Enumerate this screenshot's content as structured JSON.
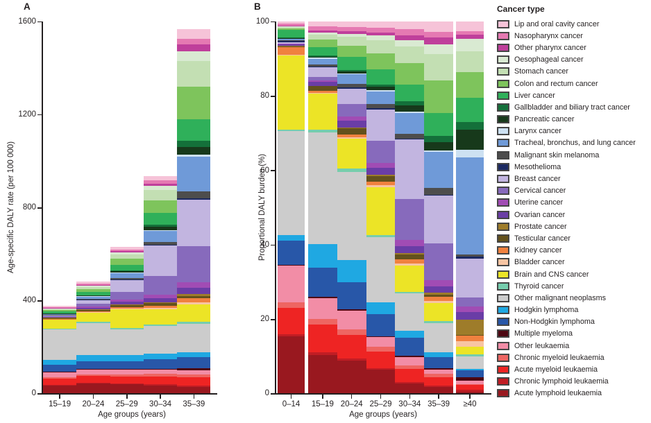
{
  "figure": {
    "panel_a_letter": "A",
    "panel_b_letter": "B"
  },
  "legend": {
    "title": "Cancer type"
  },
  "cancer_types": [
    {
      "name": "Lip and oral cavity cancer",
      "color": "#f6c3d8"
    },
    {
      "name": "Nasopharynx cancer",
      "color": "#e579b2"
    },
    {
      "name": "Other pharynx cancer",
      "color": "#bf3f9b"
    },
    {
      "name": "Oesophageal cancer",
      "color": "#d9ead2"
    },
    {
      "name": "Stomach cancer",
      "color": "#c3dfb3"
    },
    {
      "name": "Colon and rectum cancer",
      "color": "#7ec45c"
    },
    {
      "name": "Liver cancer",
      "color": "#2fb05a"
    },
    {
      "name": "Gallbladder and biliary tract cancer",
      "color": "#14703a"
    },
    {
      "name": "Pancreatic cancer",
      "color": "#17391b"
    },
    {
      "name": "Larynx cancer",
      "color": "#cde1f2"
    },
    {
      "name": "Tracheal, bronchus, and lung cancer",
      "color": "#6f9ad8"
    },
    {
      "name": "Malignant skin melanoma",
      "color": "#4d4d4d"
    },
    {
      "name": "Mesothelioma",
      "color": "#1c2a62"
    },
    {
      "name": "Breast cancer",
      "color": "#c2b5e0"
    },
    {
      "name": "Cervical cancer",
      "color": "#876abc"
    },
    {
      "name": "Uterine cancer",
      "color": "#a14cb4"
    },
    {
      "name": "Ovarian cancer",
      "color": "#6a3da6"
    },
    {
      "name": "Prostate cancer",
      "color": "#9e7c2a"
    },
    {
      "name": "Testicular cancer",
      "color": "#63511c"
    },
    {
      "name": "Kidney cancer",
      "color": "#f0813f"
    },
    {
      "name": "Bladder cancer",
      "color": "#f8c5a3"
    },
    {
      "name": "Brain and CNS cancer",
      "color": "#ece426"
    },
    {
      "name": "Thyroid cancer",
      "color": "#75cdad"
    },
    {
      "name": "Other malignant neoplasms",
      "color": "#cccccc"
    },
    {
      "name": "Hodgkin lymphoma",
      "color": "#1fa8e2"
    },
    {
      "name": "Non-Hodgkin lymphoma",
      "color": "#2857a8"
    },
    {
      "name": "Multiple myeloma",
      "color": "#4d0712"
    },
    {
      "name": "Other leukaemia",
      "color": "#f28da6"
    },
    {
      "name": "Chronic myeloid leukaemia",
      "color": "#ee6562"
    },
    {
      "name": "Acute myeloid leukaemia",
      "color": "#ee2423"
    },
    {
      "name": "Chronic lymphoid leukaemia",
      "color": "#c11d24"
    },
    {
      "name": "Acute lymphoid leukaemia",
      "color": "#99181f"
    }
  ],
  "chart_data": [
    {
      "type": "bar",
      "stacked": true,
      "stack_order": "last series at bottom, first series at top",
      "panel": "A",
      "xlabel": "Age groups (years)",
      "ylabel": "Age-specific DALY rate (per 100 000)",
      "ylim": [
        0,
        1600
      ],
      "yticks": [
        0,
        400,
        800,
        1200,
        1600
      ],
      "grid": false,
      "normalize": false,
      "categories": [
        "15–19",
        "20–24",
        "25–29",
        "30–34",
        "35–39"
      ],
      "series": [
        {
          "name": "Lip and oral cavity cancer",
          "values": [
            5,
            7,
            10,
            18,
            42
          ]
        },
        {
          "name": "Nasopharynx cancer",
          "values": [
            4,
            6,
            8,
            14,
            24
          ]
        },
        {
          "name": "Other pharynx cancer",
          "values": [
            2,
            3,
            5,
            10,
            30
          ]
        },
        {
          "name": "Oesophageal cancer",
          "values": [
            2,
            4,
            8,
            16,
            40
          ]
        },
        {
          "name": "Stomach cancer",
          "values": [
            4,
            10,
            20,
            45,
            110
          ]
        },
        {
          "name": "Colon and rectum cancer",
          "values": [
            6,
            12,
            25,
            55,
            140
          ]
        },
        {
          "name": "Liver cancer",
          "values": [
            8,
            14,
            25,
            50,
            95
          ]
        },
        {
          "name": "Gallbladder and biliary tract cancer",
          "values": [
            1,
            2,
            4,
            10,
            25
          ]
        },
        {
          "name": "Pancreatic cancer",
          "values": [
            1,
            3,
            6,
            14,
            35
          ]
        },
        {
          "name": "Larynx cancer",
          "values": [
            1,
            1,
            2,
            4,
            8
          ]
        },
        {
          "name": "Tracheal, bronchus, and lung cancer",
          "values": [
            4,
            10,
            20,
            45,
            150
          ]
        },
        {
          "name": "Malignant skin melanoma",
          "values": [
            2,
            4,
            7,
            14,
            28
          ]
        },
        {
          "name": "Mesothelioma",
          "values": [
            0.5,
            1,
            2,
            3,
            5
          ]
        },
        {
          "name": "Breast cancer",
          "values": [
            2,
            15,
            50,
            130,
            200
          ]
        },
        {
          "name": "Cervical cancer",
          "values": [
            3,
            14,
            35,
            80,
            155
          ]
        },
        {
          "name": "Uterine cancer",
          "values": [
            1,
            4,
            8,
            16,
            25
          ]
        },
        {
          "name": "Ovarian cancer",
          "values": [
            4,
            8,
            12,
            18,
            28
          ]
        },
        {
          "name": "Prostate cancer",
          "values": [
            0.5,
            1,
            2,
            4,
            8
          ]
        },
        {
          "name": "Testicular cancer",
          "values": [
            4,
            7,
            9,
            10,
            9
          ]
        },
        {
          "name": "Kidney cancer",
          "values": [
            2,
            4,
            6,
            10,
            18
          ]
        },
        {
          "name": "Bladder cancer",
          "values": [
            1,
            2,
            3,
            5,
            8
          ]
        },
        {
          "name": "Brain and CNS cancer",
          "values": [
            38,
            38,
            80,
            65,
            75
          ]
        },
        {
          "name": "Thyroid cancer",
          "values": [
            3,
            5,
            6,
            8,
            10
          ]
        },
        {
          "name": "Other malignant neoplasms",
          "values": [
            132,
            140,
            112,
            120,
            122
          ]
        },
        {
          "name": "Hodgkin lymphoma",
          "values": [
            22,
            26,
            25,
            23,
            21
          ]
        },
        {
          "name": "Non-Hodgkin lymphoma",
          "values": [
            30,
            32,
            35,
            40,
            48
          ]
        },
        {
          "name": "Multiple myeloma",
          "values": [
            1,
            1,
            2,
            4,
            7
          ]
        },
        {
          "name": "Other leukaemia",
          "values": [
            21,
            22,
            20,
            19,
            18
          ]
        },
        {
          "name": "Chronic myeloid leukaemia",
          "values": [
            6,
            8,
            9,
            11,
            13
          ]
        },
        {
          "name": "Acute myeloid leukaemia",
          "values": [
            28,
            30,
            32,
            34,
            36
          ]
        },
        {
          "name": "Chronic lymphoid leukaemia",
          "values": [
            2,
            3,
            3,
            4,
            5
          ]
        },
        {
          "name": "Acute lymphoid leukaemia",
          "values": [
            36,
            43,
            40,
            36,
            30
          ]
        }
      ]
    },
    {
      "type": "bar",
      "stacked": true,
      "stack_order": "last series at bottom, first series at top",
      "panel": "B",
      "xlabel": "Age groups (years)",
      "ylabel": "Proportional DALY burden (%)",
      "ylim": [
        0,
        100
      ],
      "yticks": [
        0,
        20,
        40,
        60,
        80,
        100
      ],
      "grid": false,
      "normalize": true,
      "categories": [
        "0–14",
        "15–19",
        "20–24",
        "25–29",
        "30–34",
        "35–39",
        "≥40"
      ],
      "series": [
        {
          "name": "Lip and oral cavity cancer",
          "values": [
            0.4,
            1.3,
            1.4,
            1.6,
            2.0,
            2.7,
            2.5
          ]
        },
        {
          "name": "Nasopharynx cancer",
          "values": [
            0.7,
            1.1,
            1.2,
            1.3,
            1.6,
            1.5,
            1.0
          ]
        },
        {
          "name": "Other pharynx cancer",
          "values": [
            0.2,
            0.5,
            0.6,
            0.8,
            1.3,
            1.9,
            1.0
          ]
        },
        {
          "name": "Oesophageal cancer",
          "values": [
            0.1,
            0.5,
            0.8,
            1.3,
            1.7,
            2.6,
            3.5
          ]
        },
        {
          "name": "Stomach cancer",
          "values": [
            0.3,
            1.4,
            2.5,
            3.5,
            4.5,
            7.0,
            5.5
          ]
        },
        {
          "name": "Colon and rectum cancer",
          "values": [
            0.5,
            2.0,
            3.0,
            4.3,
            5.75,
            8.9,
            7.0
          ]
        },
        {
          "name": "Liver cancer",
          "values": [
            2.0,
            2.3,
            3.4,
            4.0,
            4.5,
            6.1,
            6.5
          ]
        },
        {
          "name": "Gallbladder and biliary tract cancer",
          "values": [
            0.2,
            0.3,
            0.4,
            0.6,
            1.2,
            1.6,
            2.0
          ]
        },
        {
          "name": "Pancreatic cancer",
          "values": [
            0.1,
            0.3,
            0.6,
            1.0,
            1.6,
            2.2,
            5.5
          ]
        },
        {
          "name": "Larynx cancer",
          "values": [
            0.1,
            0.3,
            0.2,
            0.3,
            0.4,
            0.5,
            2.0
          ]
        },
        {
          "name": "Tracheal, bronchus, and lung cancer",
          "values": [
            0.4,
            1.5,
            2.6,
            3.5,
            5.5,
            9.6,
            26.0
          ]
        },
        {
          "name": "Malignant skin melanoma",
          "values": [
            0.2,
            0.5,
            1.0,
            1.1,
            1.3,
            1.8,
            0.6
          ]
        },
        {
          "name": "Mesothelioma",
          "values": [
            0.4,
            0.2,
            0.2,
            0.3,
            0.3,
            0.3,
            0.5
          ]
        },
        {
          "name": "Breast cancer",
          "values": [
            0.2,
            2.6,
            4.1,
            8.4,
            16.0,
            12.8,
            10.5
          ]
        },
        {
          "name": "Cervical cancer",
          "values": [
            0.1,
            1.0,
            3.5,
            6.0,
            11.0,
            9.9,
            2.5
          ]
        },
        {
          "name": "Uterine cancer",
          "values": [
            0.1,
            0.3,
            1.0,
            1.3,
            1.7,
            1.6,
            1.5
          ]
        },
        {
          "name": "Ovarian cancer",
          "values": [
            0.5,
            1.1,
            1.9,
            1.9,
            1.8,
            1.8,
            2.0
          ]
        },
        {
          "name": "Prostate cancer",
          "values": [
            0.1,
            0.1,
            0.2,
            0.3,
            0.4,
            0.5,
            4.0
          ]
        },
        {
          "name": "Testicular cancer",
          "values": [
            0.3,
            1.3,
            1.6,
            1.4,
            1.3,
            0.6,
            0.2
          ]
        },
        {
          "name": "Kidney cancer",
          "values": [
            2.0,
            0.5,
            0.8,
            1.0,
            1.2,
            1.1,
            1.5
          ]
        },
        {
          "name": "Bladder cancer",
          "values": [
            0.1,
            0.3,
            0.4,
            0.5,
            0.5,
            0.5,
            1.5
          ]
        },
        {
          "name": "Brain and CNS cancer",
          "values": [
            20.0,
            9.6,
            8.0,
            13.0,
            7.0,
            4.8,
            2.2
          ]
        },
        {
          "name": "Thyroid cancer",
          "values": [
            0.3,
            0.8,
            1.0,
            0.5,
            0.5,
            0.6,
            0.4
          ]
        },
        {
          "name": "Other malignant neoplasms",
          "values": [
            28.0,
            30.0,
            23.5,
            17.5,
            10.0,
            7.8,
            3.5
          ]
        },
        {
          "name": "Hodgkin lymphoma",
          "values": [
            1.5,
            6.3,
            6.0,
            3.2,
            1.8,
            1.3,
            0.3
          ]
        },
        {
          "name": "Non-Hodgkin lymphoma",
          "values": [
            6.5,
            8.0,
            7.4,
            5.9,
            5.0,
            3.1,
            1.8
          ]
        },
        {
          "name": "Multiple myeloma",
          "values": [
            0.2,
            0.3,
            0.3,
            0.3,
            0.35,
            0.4,
            1.0
          ]
        },
        {
          "name": "Other leukaemia",
          "values": [
            10.0,
            5.5,
            5.0,
            2.6,
            2.2,
            1.1,
            0.9
          ]
        },
        {
          "name": "Chronic myeloid leukaemia",
          "values": [
            1.5,
            1.6,
            1.6,
            1.2,
            1.0,
            0.8,
            0.3
          ]
        },
        {
          "name": "Acute myeloid leukaemia",
          "values": [
            7.0,
            7.5,
            6.2,
            4.6,
            3.4,
            2.3,
            1.2
          ]
        },
        {
          "name": "Chronic lymphoid leukaemia",
          "values": [
            0.5,
            0.6,
            0.6,
            0.4,
            0.4,
            0.3,
            0.6
          ]
        },
        {
          "name": "Acute lymphoid leukaemia",
          "values": [
            15.5,
            10.5,
            8.9,
            6.4,
            2.8,
            1.9,
            0.5
          ]
        }
      ]
    }
  ]
}
